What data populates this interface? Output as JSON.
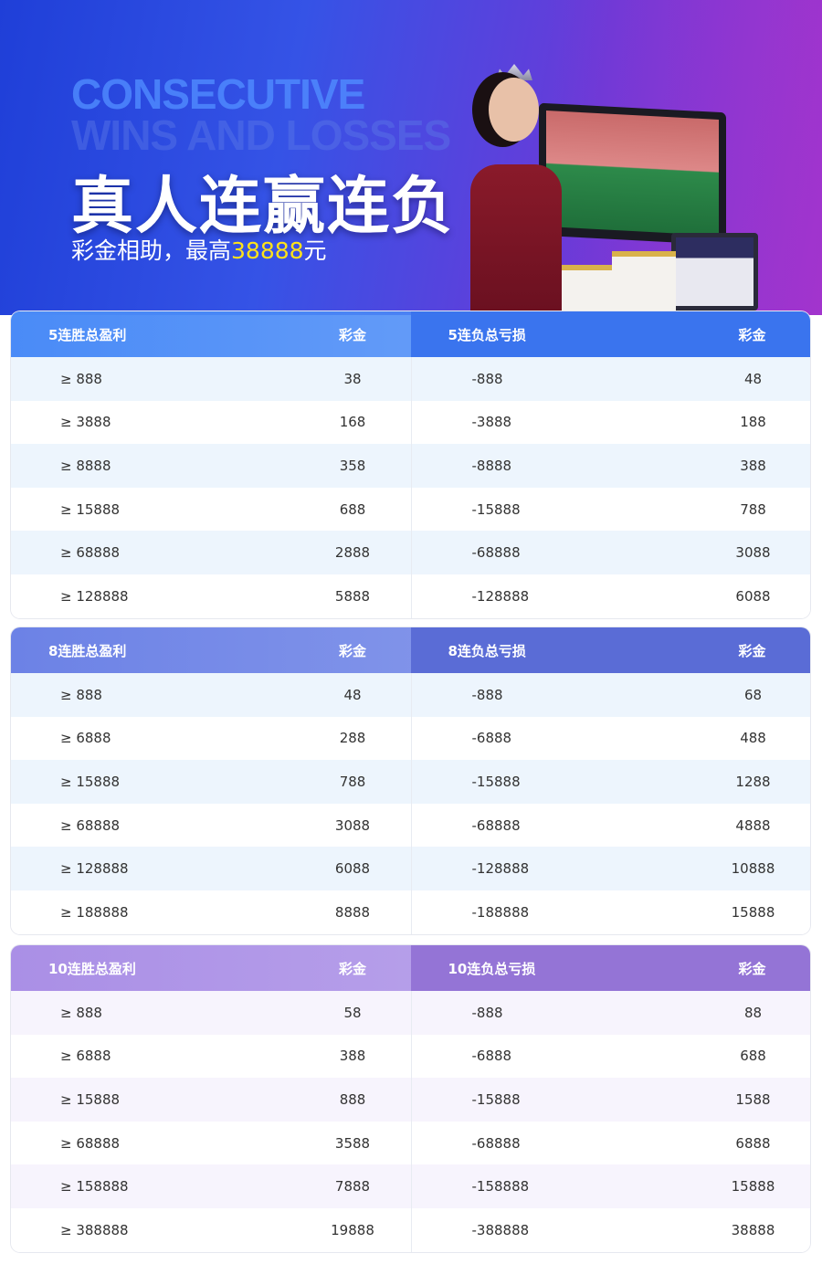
{
  "banner": {
    "en_line1": "CONSECUTIVE",
    "en_line2": "WINS AND LOSSES",
    "title": "真人连赢连负",
    "subtitle_prefix": "彩金相助，最高",
    "subtitle_amount": "38888",
    "subtitle_suffix": "元",
    "colors": {
      "highlight": "#ffe21a"
    }
  },
  "tables": [
    {
      "win_header": "5连胜总盈利",
      "win_prize_header": "彩金",
      "loss_header": "5连负总亏损",
      "loss_prize_header": "彩金",
      "colors": {
        "win": "#4a8bf7",
        "loss": "#3a74ee",
        "row_alt": "#edf5fd"
      },
      "rows": [
        {
          "win": "≥ 888",
          "win_prize": "38",
          "loss": "-888",
          "loss_prize": "48"
        },
        {
          "win": "≥ 3888",
          "win_prize": "168",
          "loss": "-3888",
          "loss_prize": "188"
        },
        {
          "win": "≥ 8888",
          "win_prize": "358",
          "loss": "-8888",
          "loss_prize": "388"
        },
        {
          "win": "≥ 15888",
          "win_prize": "688",
          "loss": "-15888",
          "loss_prize": "788"
        },
        {
          "win": "≥ 68888",
          "win_prize": "2888",
          "loss": "-68888",
          "loss_prize": "3088"
        },
        {
          "win": "≥ 128888",
          "win_prize": "5888",
          "loss": "-128888",
          "loss_prize": "6088"
        }
      ]
    },
    {
      "win_header": "8连胜总盈利",
      "win_prize_header": "彩金",
      "loss_header": "8连负总亏损",
      "loss_prize_header": "彩金",
      "colors": {
        "win": "#6c82e6",
        "loss": "#5a6cd6",
        "row_alt": "#edf5fd"
      },
      "rows": [
        {
          "win": "≥ 888",
          "win_prize": "48",
          "loss": "-888",
          "loss_prize": "68"
        },
        {
          "win": "≥ 6888",
          "win_prize": "288",
          "loss": "-6888",
          "loss_prize": "488"
        },
        {
          "win": "≥ 15888",
          "win_prize": "788",
          "loss": "-15888",
          "loss_prize": "1288"
        },
        {
          "win": "≥ 68888",
          "win_prize": "3088",
          "loss": "-68888",
          "loss_prize": "4888"
        },
        {
          "win": "≥ 128888",
          "win_prize": "6088",
          "loss": "-128888",
          "loss_prize": "10888"
        },
        {
          "win": "≥ 188888",
          "win_prize": "8888",
          "loss": "-188888",
          "loss_prize": "15888"
        }
      ]
    },
    {
      "win_header": "10连胜总盈利",
      "win_prize_header": "彩金",
      "loss_header": "10连负总亏损",
      "loss_prize_header": "彩金",
      "colors": {
        "win": "#aa8fe6",
        "loss": "#9474d6",
        "row_alt": "#f7f4fd"
      },
      "rows": [
        {
          "win": "≥ 888",
          "win_prize": "58",
          "loss": "-888",
          "loss_prize": "88"
        },
        {
          "win": "≥ 6888",
          "win_prize": "388",
          "loss": "-6888",
          "loss_prize": "688"
        },
        {
          "win": "≥ 15888",
          "win_prize": "888",
          "loss": "-15888",
          "loss_prize": "1588"
        },
        {
          "win": "≥ 68888",
          "win_prize": "3588",
          "loss": "-68888",
          "loss_prize": "6888"
        },
        {
          "win": "≥ 158888",
          "win_prize": "7888",
          "loss": "-158888",
          "loss_prize": "15888"
        },
        {
          "win": "≥ 388888",
          "win_prize": "19888",
          "loss": "-388888",
          "loss_prize": "38888"
        }
      ]
    }
  ]
}
